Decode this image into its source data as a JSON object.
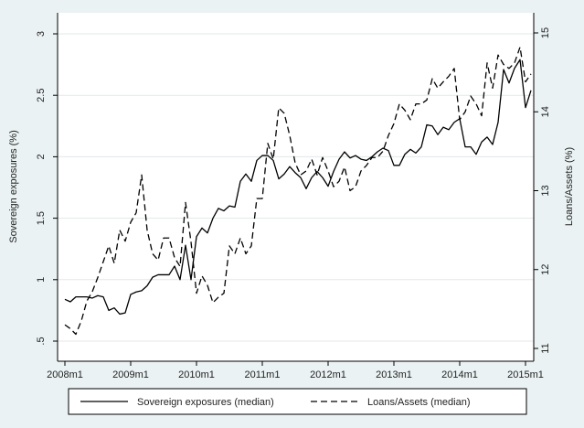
{
  "chart_data": {
    "type": "line",
    "y_left": {
      "label": "Sovereign exposures (%)",
      "ticks": [
        ".5",
        "1",
        "1.5",
        "2",
        "2.5",
        "3"
      ],
      "ylim": [
        0.5,
        3.0
      ]
    },
    "y_right": {
      "label": "Loans/Assets (%)",
      "ticks": [
        "11",
        "12",
        "13",
        "14",
        "15"
      ],
      "ylim": [
        11,
        15
      ]
    },
    "x_axis": {
      "ticks": [
        "2008m1",
        "2009m1",
        "2010m1",
        "2011m1",
        "2012m1",
        "2013m1",
        "2014m1",
        "2015m1"
      ],
      "range": [
        "2008m1",
        "2015m1"
      ]
    },
    "grid": true,
    "legend": {
      "placement": "bottom"
    },
    "series": [
      {
        "name": "Sovereign exposures (median)",
        "axis": "left",
        "style": "solid",
        "color": "#000000",
        "points": [
          [
            "2008m1",
            0.84
          ],
          [
            "2008m2",
            0.82
          ],
          [
            "2008m3",
            0.86
          ],
          [
            "2008m4",
            0.86
          ],
          [
            "2008m5",
            0.86
          ],
          [
            "2008m6",
            0.85
          ],
          [
            "2008m7",
            0.87
          ],
          [
            "2008m8",
            0.86
          ],
          [
            "2008m9",
            0.75
          ],
          [
            "2008m10",
            0.77
          ],
          [
            "2008m11",
            0.72
          ],
          [
            "2008m12",
            0.73
          ],
          [
            "2009m1",
            0.88
          ],
          [
            "2009m2",
            0.9
          ],
          [
            "2009m3",
            0.91
          ],
          [
            "2009m4",
            0.95
          ],
          [
            "2009m5",
            1.02
          ],
          [
            "2009m6",
            1.04
          ],
          [
            "2009m7",
            1.04
          ],
          [
            "2009m8",
            1.04
          ],
          [
            "2009m9",
            1.11
          ],
          [
            "2009m10",
            1.0
          ],
          [
            "2009m11",
            1.28
          ],
          [
            "2009m12",
            1.0
          ],
          [
            "2010m1",
            1.35
          ],
          [
            "2010m2",
            1.42
          ],
          [
            "2010m3",
            1.38
          ],
          [
            "2010m4",
            1.5
          ],
          [
            "2010m5",
            1.58
          ],
          [
            "2010m6",
            1.56
          ],
          [
            "2010m7",
            1.6
          ],
          [
            "2010m8",
            1.59
          ],
          [
            "2010m9",
            1.8
          ],
          [
            "2010m10",
            1.86
          ],
          [
            "2010m11",
            1.8
          ],
          [
            "2010m12",
            1.97
          ],
          [
            "2011m1",
            2.01
          ],
          [
            "2011m2",
            2.01
          ],
          [
            "2011m3",
            1.97
          ],
          [
            "2011m4",
            1.82
          ],
          [
            "2011m5",
            1.86
          ],
          [
            "2011m6",
            1.92
          ],
          [
            "2011m7",
            1.87
          ],
          [
            "2011m8",
            1.83
          ],
          [
            "2011m9",
            1.74
          ],
          [
            "2011m10",
            1.83
          ],
          [
            "2011m11",
            1.88
          ],
          [
            "2011m12",
            1.83
          ],
          [
            "2012m1",
            1.76
          ],
          [
            "2012m2",
            1.88
          ],
          [
            "2012m3",
            1.98
          ],
          [
            "2012m4",
            2.04
          ],
          [
            "2012m5",
            1.99
          ],
          [
            "2012m6",
            2.01
          ],
          [
            "2012m7",
            1.98
          ],
          [
            "2012m8",
            1.97
          ],
          [
            "2012m9",
            2.0
          ],
          [
            "2012m10",
            2.04
          ],
          [
            "2012m11",
            2.07
          ],
          [
            "2012m12",
            2.05
          ],
          [
            "2013m1",
            1.93
          ],
          [
            "2013m2",
            1.93
          ],
          [
            "2013m3",
            2.02
          ],
          [
            "2013m4",
            2.06
          ],
          [
            "2013m5",
            2.03
          ],
          [
            "2013m6",
            2.08
          ],
          [
            "2013m7",
            2.26
          ],
          [
            "2013m8",
            2.25
          ],
          [
            "2013m9",
            2.18
          ],
          [
            "2013m10",
            2.24
          ],
          [
            "2013m11",
            2.22
          ],
          [
            "2013m12",
            2.28
          ],
          [
            "2014m1",
            2.31
          ],
          [
            "2014m2",
            2.08
          ],
          [
            "2014m3",
            2.08
          ],
          [
            "2014m4",
            2.02
          ],
          [
            "2014m5",
            2.12
          ],
          [
            "2014m6",
            2.16
          ],
          [
            "2014m7",
            2.1
          ],
          [
            "2014m8",
            2.28
          ],
          [
            "2014m9",
            2.71
          ],
          [
            "2014m10",
            2.6
          ],
          [
            "2014m11",
            2.72
          ],
          [
            "2014m12",
            2.79
          ],
          [
            "2015m1",
            2.4
          ],
          [
            "2015m2",
            2.54
          ]
        ]
      },
      {
        "name": "Loans/Assets (median)",
        "axis": "right",
        "style": "dashed",
        "color": "#000000",
        "points": [
          [
            "2008m1",
            11.3
          ],
          [
            "2008m2",
            11.25
          ],
          [
            "2008m3",
            11.18
          ],
          [
            "2008m4",
            11.35
          ],
          [
            "2008m5",
            11.6
          ],
          [
            "2008m6",
            11.72
          ],
          [
            "2008m7",
            11.9
          ],
          [
            "2008m8",
            12.1
          ],
          [
            "2008m9",
            12.3
          ],
          [
            "2008m10",
            12.08
          ],
          [
            "2008m11",
            12.5
          ],
          [
            "2008m12",
            12.36
          ],
          [
            "2009m1",
            12.6
          ],
          [
            "2009m2",
            12.72
          ],
          [
            "2009m3",
            13.2
          ],
          [
            "2009m4",
            12.5
          ],
          [
            "2009m5",
            12.2
          ],
          [
            "2009m6",
            12.12
          ],
          [
            "2009m7",
            12.4
          ],
          [
            "2009m8",
            12.4
          ],
          [
            "2009m9",
            12.15
          ],
          [
            "2009m10",
            12.04
          ],
          [
            "2009m11",
            12.85
          ],
          [
            "2009m12",
            12.35
          ],
          [
            "2010m1",
            11.7
          ],
          [
            "2010m2",
            11.92
          ],
          [
            "2010m3",
            11.8
          ],
          [
            "2010m4",
            11.58
          ],
          [
            "2010m5",
            11.65
          ],
          [
            "2010m6",
            11.7
          ],
          [
            "2010m7",
            12.3
          ],
          [
            "2010m8",
            12.2
          ],
          [
            "2010m9",
            12.4
          ],
          [
            "2010m10",
            12.2
          ],
          [
            "2010m11",
            12.3
          ],
          [
            "2010m12",
            12.9
          ],
          [
            "2011m1",
            12.9
          ],
          [
            "2011m2",
            13.6
          ],
          [
            "2011m3",
            13.4
          ],
          [
            "2011m4",
            14.05
          ],
          [
            "2011m5",
            13.98
          ],
          [
            "2011m6",
            13.7
          ],
          [
            "2011m7",
            13.35
          ],
          [
            "2011m8",
            13.2
          ],
          [
            "2011m9",
            13.25
          ],
          [
            "2011m10",
            13.4
          ],
          [
            "2011m11",
            13.2
          ],
          [
            "2011m12",
            13.42
          ],
          [
            "2012m1",
            13.25
          ],
          [
            "2012m2",
            13.05
          ],
          [
            "2012m3",
            13.12
          ],
          [
            "2012m4",
            13.3
          ],
          [
            "2012m5",
            13.0
          ],
          [
            "2012m6",
            13.05
          ],
          [
            "2012m7",
            13.25
          ],
          [
            "2012m8",
            13.32
          ],
          [
            "2012m9",
            13.42
          ],
          [
            "2012m10",
            13.42
          ],
          [
            "2012m11",
            13.5
          ],
          [
            "2012m12",
            13.7
          ],
          [
            "2013m1",
            13.85
          ],
          [
            "2013m2",
            14.1
          ],
          [
            "2013m3",
            14.02
          ],
          [
            "2013m4",
            13.9
          ],
          [
            "2013m5",
            14.1
          ],
          [
            "2013m6",
            14.1
          ],
          [
            "2013m7",
            14.15
          ],
          [
            "2013m8",
            14.42
          ],
          [
            "2013m9",
            14.3
          ],
          [
            "2013m10",
            14.38
          ],
          [
            "2013m11",
            14.45
          ],
          [
            "2013m12",
            14.55
          ],
          [
            "2014m1",
            13.9
          ],
          [
            "2014m2",
            14.0
          ],
          [
            "2014m3",
            14.2
          ],
          [
            "2014m4",
            14.1
          ],
          [
            "2014m5",
            13.95
          ],
          [
            "2014m6",
            14.62
          ],
          [
            "2014m7",
            14.3
          ],
          [
            "2014m8",
            14.72
          ],
          [
            "2014m9",
            14.6
          ],
          [
            "2014m10",
            14.55
          ],
          [
            "2014m11",
            14.62
          ],
          [
            "2014m12",
            14.82
          ],
          [
            "2015m1",
            14.38
          ],
          [
            "2015m2",
            14.48
          ]
        ]
      }
    ]
  }
}
